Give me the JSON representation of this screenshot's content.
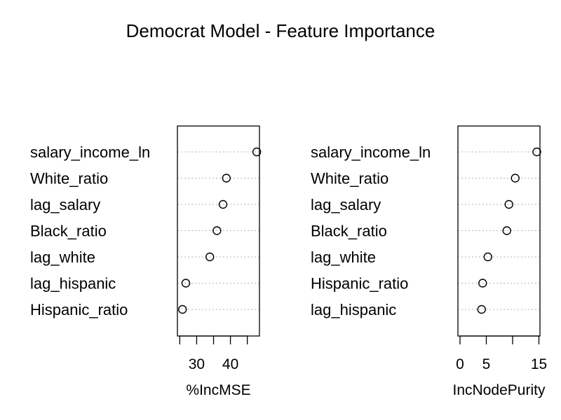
{
  "chart_data": {
    "type": "dotchart",
    "title": "Democrat Model - Feature Importance",
    "grid": "dotted-per-row",
    "panels": [
      {
        "xlabel": "%IncMSE",
        "xticks": [
          25,
          30,
          35,
          40,
          45
        ],
        "xtick_labels": [
          "",
          "30",
          "",
          "40",
          ""
        ],
        "xlim": [
          24.3,
          48.6
        ],
        "labels": [
          "salary_income_ln",
          "White_ratio",
          "lag_salary",
          "Black_ratio",
          "lag_white",
          "lag_hispanic",
          "Hispanic_ratio"
        ],
        "values": [
          47.8,
          38.8,
          37.8,
          36.0,
          33.9,
          26.8,
          25.8
        ]
      },
      {
        "xlabel": "IncNodePurity",
        "xticks": [
          0,
          5,
          10,
          15
        ],
        "xtick_labels": [
          "0",
          "5",
          "",
          "15"
        ],
        "xlim": [
          -0.4,
          15.2
        ],
        "labels": [
          "salary_income_ln",
          "White_ratio",
          "lag_salary",
          "Black_ratio",
          "lag_white",
          "Hispanic_ratio",
          "lag_hispanic"
        ],
        "values": [
          14.6,
          10.5,
          9.3,
          8.9,
          5.3,
          4.3,
          4.1
        ]
      }
    ]
  }
}
